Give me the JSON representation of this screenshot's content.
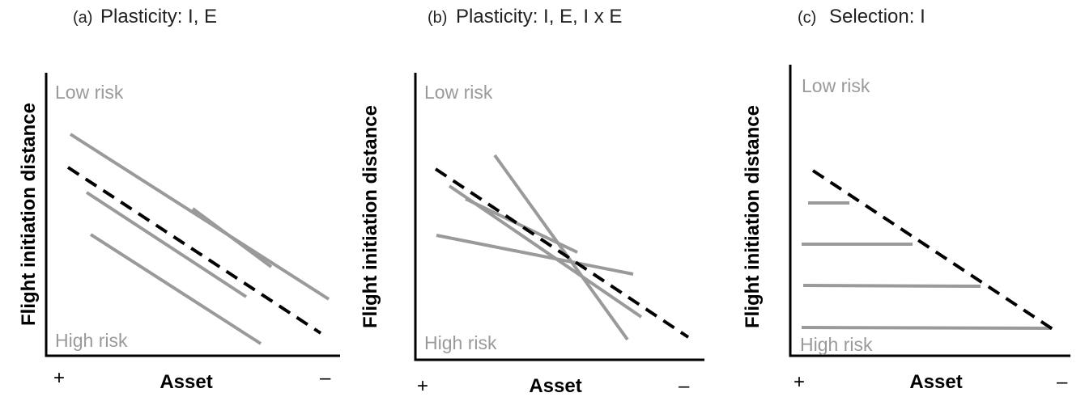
{
  "common": {
    "y_axis_label": "Flight initiation distance",
    "x_axis_label": "Asset",
    "top_label": "Low risk",
    "bottom_label": "High risk",
    "x_left_sign": "+",
    "x_right_sign": "–"
  },
  "panels": [
    {
      "letter": "(a)",
      "title": "Plasticity: I, E"
    },
    {
      "letter": "(b)",
      "title": "Plasticity: I, E, I x E"
    },
    {
      "letter": "(c)",
      "title": "Selection: I"
    }
  ],
  "colors": {
    "individual_line": "#9a9a9a",
    "population_line": "#000000"
  }
}
